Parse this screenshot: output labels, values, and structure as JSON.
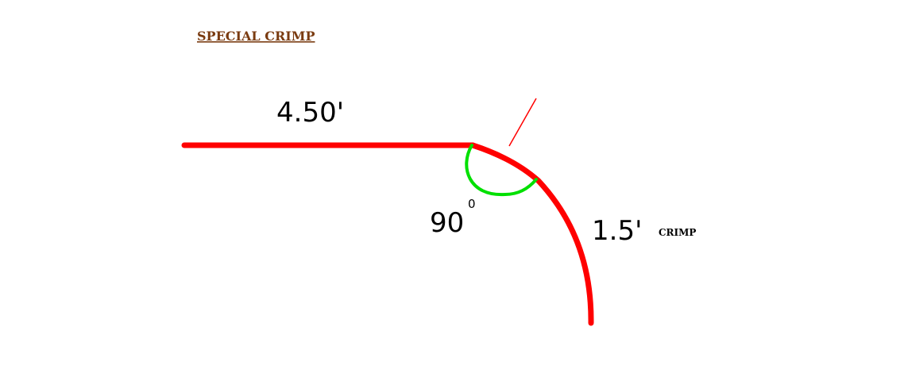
{
  "title": "SPECIAL CRIMP",
  "straight_length_label": "4.50'",
  "angle_label": "90",
  "angle_unit": "0",
  "crimp_length_label": "1.5'",
  "crimp_label": "CRIMP",
  "colors": {
    "title": "#7a3b10",
    "profile_line": "#ff0000",
    "angle_arc": "#00e000",
    "leader_line": "#ff0000",
    "text": "#000000"
  }
}
